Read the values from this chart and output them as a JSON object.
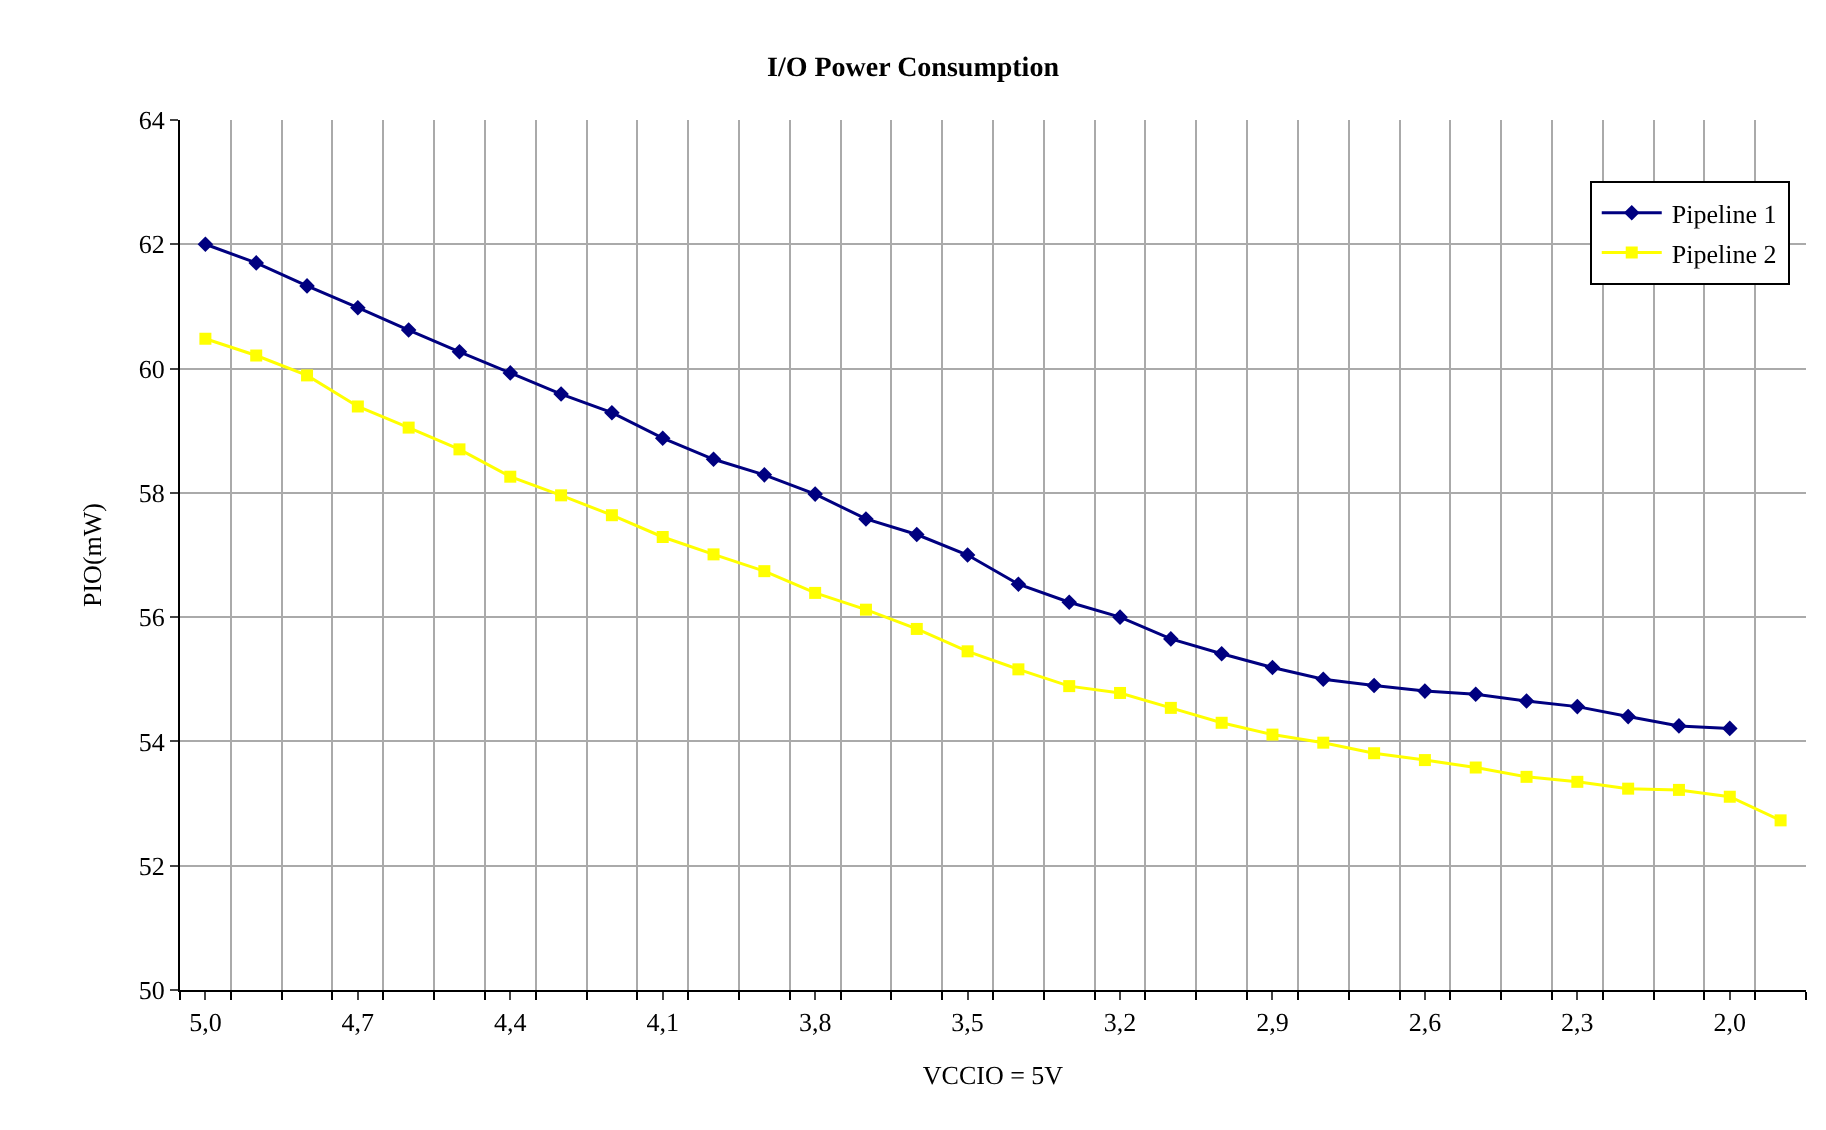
{
  "chart_data": {
    "type": "line",
    "title": "I/O Power Consumption",
    "xlabel": "VCCIO = 5V",
    "ylabel": "PIO(mW)",
    "categories": [
      "5,0",
      null,
      null,
      "4,7",
      null,
      null,
      "4,4",
      null,
      null,
      "4,1",
      null,
      null,
      "3,8",
      null,
      null,
      "3,5",
      null,
      null,
      "3,2",
      null,
      null,
      "2,9",
      null,
      null,
      "2,6",
      null,
      null,
      "2,3",
      null,
      null,
      "2,0",
      null
    ],
    "series": [
      {
        "name": "Pipeline 1",
        "color": "#000080",
        "marker": "diamond",
        "values": [
          62.0,
          61.7,
          61.33,
          60.98,
          60.62,
          60.27,
          59.93,
          59.59,
          59.29,
          58.88,
          58.54,
          58.29,
          57.98,
          57.58,
          57.33,
          57.0,
          56.53,
          56.24,
          56.0,
          55.65,
          55.41,
          55.19,
          55.0,
          54.9,
          54.81,
          54.76,
          54.65,
          54.56,
          54.4,
          54.25,
          54.21,
          null
        ]
      },
      {
        "name": "Pipeline 2",
        "color": "#ffff00",
        "marker": "square",
        "values": [
          60.48,
          60.21,
          59.89,
          59.39,
          59.05,
          58.7,
          58.26,
          57.96,
          57.64,
          57.29,
          57.01,
          56.74,
          56.39,
          56.12,
          55.81,
          55.45,
          55.16,
          54.89,
          54.78,
          54.54,
          54.3,
          54.11,
          53.98,
          53.81,
          53.7,
          53.58,
          53.43,
          53.35,
          53.24,
          53.22,
          53.11,
          52.73
        ]
      }
    ],
    "ylim": [
      50,
      64
    ],
    "yticks": [
      50,
      52,
      54,
      56,
      58,
      60,
      62,
      64
    ],
    "grid": true,
    "legend": "top right"
  }
}
